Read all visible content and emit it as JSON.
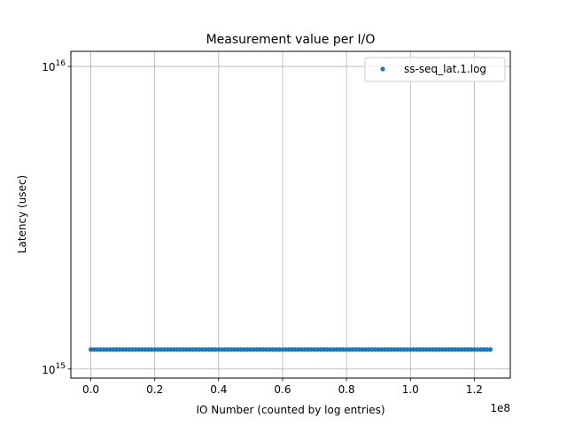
{
  "chart_data": {
    "type": "scatter",
    "title": "Measurement value per I/O",
    "xlabel": "IO Number (counted by log entries)",
    "ylabel": "Latency (usec)",
    "x_offset_label": "1e8",
    "xlim": [
      -0.0625,
      1.3125
    ],
    "ylim_log10": [
      14.97,
      16.05
    ],
    "x_ticks": [
      {
        "value": 0.0,
        "label": "0.0"
      },
      {
        "value": 0.2,
        "label": "0.2"
      },
      {
        "value": 0.4,
        "label": "0.4"
      },
      {
        "value": 0.6,
        "label": "0.6"
      },
      {
        "value": 0.8,
        "label": "0.8"
      },
      {
        "value": 1.0,
        "label": "1.0"
      },
      {
        "value": 1.2,
        "label": "1.2"
      }
    ],
    "y_ticks": [
      {
        "exponent": 15,
        "base": "10",
        "sup": "15"
      },
      {
        "exponent": 16,
        "base": "10",
        "sup": "16"
      }
    ],
    "y_scale": "log",
    "grid": true,
    "legend_position": "top-right",
    "series": [
      {
        "name": "ss-seq_lat.1.log",
        "color": "#1f77b4",
        "x_start": 0.0,
        "x_end": 1.25,
        "count": 126,
        "y_value": 1160000000000000.0
      }
    ]
  }
}
